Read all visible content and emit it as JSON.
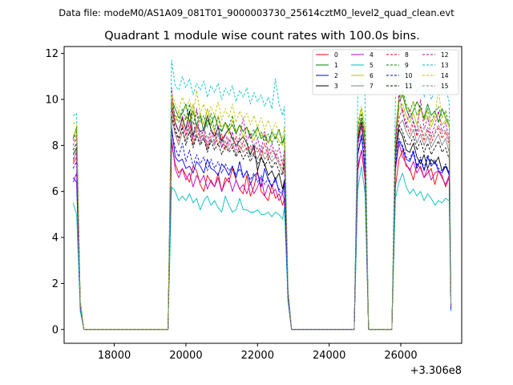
{
  "header": {
    "data_file": "Data file: modeM0/AS1A09_081T01_9000003730_25614cztM0_level2_quad_clean.evt"
  },
  "chart_data": {
    "type": "line",
    "title": "Quadrant 1 module wise count rates with 100.0s bins.",
    "xlabel": "",
    "ylabel": "",
    "x_offset_label": "+3.306e8",
    "xlim": [
      16600,
      27700
    ],
    "ylim": [
      -0.6,
      12.3
    ],
    "xticks": [
      18000,
      20000,
      22000,
      24000,
      26000
    ],
    "yticks": [
      0,
      2,
      4,
      6,
      8,
      10,
      12
    ],
    "legend_position": "top-right",
    "segments": [
      {
        "start": 16850,
        "end": 17050
      },
      {
        "start": 19500,
        "end": 22750
      },
      {
        "start": 24800,
        "end": 25000
      },
      {
        "start": 25850,
        "end": 27400
      }
    ],
    "x_samples": [
      16850,
      16950,
      17050,
      17150,
      18000,
      19400,
      19500,
      19600,
      19700,
      19800,
      19900,
      20000,
      20100,
      20200,
      20300,
      20400,
      20500,
      20600,
      20700,
      20800,
      20900,
      21000,
      21100,
      21200,
      21300,
      21400,
      21500,
      21600,
      21700,
      21800,
      21900,
      22000,
      22100,
      22200,
      22300,
      22400,
      22500,
      22600,
      22700,
      22750,
      22850,
      22950,
      23800,
      24700,
      24800,
      24900,
      25000,
      25100,
      25600,
      25750,
      25850,
      25950,
      26050,
      26150,
      26250,
      26350,
      26450,
      26550,
      26650,
      26750,
      26850,
      26950,
      27050,
      27150,
      27250,
      27350,
      27400
    ],
    "series": [
      {
        "name": "0",
        "color": "#ff0000",
        "dash": "solid",
        "values": [
          7.2,
          7.5,
          1.0,
          0.0,
          0.0,
          0.0,
          0.0,
          8.1,
          7.2,
          6.8,
          7.0,
          6.7,
          6.4,
          7.1,
          6.9,
          6.3,
          6.0,
          6.7,
          6.4,
          6.2,
          6.8,
          6.0,
          6.6,
          6.4,
          7.0,
          6.5,
          6.1,
          5.9,
          6.7,
          5.8,
          6.2,
          6.9,
          6.0,
          5.8,
          5.6,
          6.3,
          5.7,
          5.9,
          5.4,
          5.7,
          1.5,
          0.0,
          0.0,
          0.0,
          6.9,
          7.8,
          6.5,
          0.0,
          0.0,
          0.0,
          6.2,
          7.4,
          7.8,
          7.1,
          7.0,
          6.5,
          7.2,
          7.0,
          6.6,
          6.8,
          7.0,
          6.3,
          6.9,
          6.7,
          6.2,
          6.6,
          1.0
        ]
      },
      {
        "name": "1",
        "color": "#008000",
        "dash": "solid",
        "values": [
          8.3,
          8.8,
          1.2,
          0.0,
          0.0,
          0.0,
          0.0,
          10.0,
          9.6,
          9.2,
          9.4,
          9.8,
          9.0,
          9.5,
          8.9,
          9.3,
          8.6,
          9.1,
          8.9,
          9.3,
          8.8,
          8.6,
          9.0,
          8.7,
          8.9,
          8.5,
          8.9,
          8.6,
          8.8,
          8.3,
          8.5,
          8.8,
          8.3,
          8.4,
          8.1,
          8.6,
          8.3,
          8.7,
          8.1,
          8.4,
          1.6,
          0.0,
          0.0,
          0.0,
          8.6,
          9.2,
          8.3,
          0.0,
          0.0,
          0.0,
          8.1,
          9.9,
          10.2,
          9.6,
          9.2,
          9.5,
          9.9,
          9.6,
          9.2,
          9.8,
          9.3,
          9.5,
          9.0,
          9.6,
          9.2,
          8.9,
          1.1
        ]
      },
      {
        "name": "2",
        "color": "#0000ff",
        "dash": "solid",
        "values": [
          6.6,
          6.4,
          0.9,
          0.0,
          0.0,
          0.0,
          0.0,
          8.8,
          7.5,
          7.3,
          7.4,
          7.0,
          7.1,
          6.8,
          7.3,
          7.1,
          6.8,
          7.4,
          7.0,
          6.9,
          6.7,
          7.2,
          7.0,
          6.7,
          7.1,
          6.6,
          7.3,
          6.6,
          6.9,
          6.3,
          6.7,
          6.8,
          6.2,
          7.0,
          6.5,
          6.2,
          6.6,
          6.0,
          5.9,
          6.4,
          1.4,
          0.0,
          0.0,
          0.0,
          7.6,
          8.4,
          7.0,
          0.0,
          0.0,
          0.0,
          7.1,
          8.2,
          7.9,
          7.4,
          7.3,
          7.7,
          7.0,
          7.4,
          6.9,
          7.5,
          7.1,
          7.3,
          6.9,
          6.8,
          7.1,
          6.7,
          0.8
        ]
      },
      {
        "name": "3",
        "color": "#000000",
        "dash": "solid",
        "values": [
          7.6,
          7.9,
          1.1,
          0.0,
          0.0,
          0.0,
          0.0,
          9.6,
          9.0,
          8.6,
          9.2,
          8.7,
          9.5,
          8.4,
          8.9,
          8.6,
          8.7,
          9.3,
          8.7,
          8.4,
          8.8,
          8.2,
          8.5,
          8.7,
          8.3,
          8.0,
          8.2,
          8.4,
          8.1,
          7.6,
          8.0,
          6.9,
          7.5,
          7.2,
          6.7,
          6.9,
          6.5,
          6.8,
          6.1,
          6.5,
          1.4,
          0.0,
          0.0,
          0.0,
          8.2,
          9.0,
          7.7,
          0.0,
          0.0,
          0.0,
          7.5,
          8.7,
          8.4,
          7.8,
          7.7,
          8.1,
          7.5,
          7.2,
          7.6,
          7.0,
          7.4,
          7.2,
          7.5,
          6.9,
          7.1,
          6.8,
          1.0
        ]
      },
      {
        "name": "4",
        "color": "#bf00bf",
        "dash": "solid",
        "values": [
          6.4,
          6.8,
          1.0,
          0.0,
          0.0,
          0.0,
          0.0,
          8.3,
          7.0,
          6.6,
          7.0,
          6.5,
          6.8,
          6.2,
          6.7,
          6.4,
          6.7,
          6.1,
          6.5,
          6.2,
          6.6,
          6.0,
          6.4,
          6.6,
          6.0,
          6.5,
          6.1,
          6.3,
          5.9,
          6.4,
          5.9,
          6.2,
          6.6,
          5.8,
          6.3,
          5.9,
          6.1,
          5.6,
          5.9,
          5.6,
          1.3,
          0.0,
          0.0,
          0.0,
          7.1,
          7.8,
          6.8,
          0.0,
          0.0,
          0.0,
          6.9,
          8.1,
          7.5,
          7.2,
          6.9,
          7.3,
          6.8,
          7.1,
          6.6,
          7.0,
          6.5,
          6.8,
          6.9,
          6.6,
          6.3,
          6.7,
          0.9
        ]
      },
      {
        "name": "5",
        "color": "#00bfbf",
        "dash": "solid",
        "values": [
          5.5,
          5.0,
          0.8,
          0.0,
          0.0,
          0.0,
          0.0,
          6.2,
          6.0,
          5.6,
          5.8,
          5.6,
          5.9,
          5.5,
          5.7,
          5.2,
          5.6,
          5.8,
          5.4,
          5.6,
          5.3,
          5.1,
          5.8,
          5.4,
          5.1,
          5.2,
          5.7,
          5.2,
          5.2,
          5.1,
          5.1,
          5.2,
          5.0,
          5.0,
          5.1,
          4.9,
          5.1,
          5.0,
          4.8,
          5.3,
          1.2,
          0.0,
          0.0,
          0.0,
          6.1,
          7.1,
          5.9,
          0.0,
          0.0,
          0.0,
          5.7,
          6.4,
          6.8,
          6.2,
          5.9,
          6.1,
          5.8,
          6.0,
          5.6,
          5.9,
          5.7,
          5.4,
          5.6,
          5.5,
          5.7,
          5.6,
          0.8
        ]
      },
      {
        "name": "6",
        "color": "#bfbf00",
        "dash": "solid",
        "values": [
          8.4,
          8.7,
          1.2,
          0.0,
          0.0,
          0.0,
          0.0,
          10.1,
          9.0,
          9.5,
          8.8,
          9.3,
          9.0,
          9.8,
          8.7,
          9.4,
          8.9,
          9.6,
          9.0,
          8.6,
          9.3,
          8.8,
          9.0,
          8.5,
          9.1,
          8.6,
          8.9,
          8.3,
          8.8,
          8.5,
          8.2,
          8.7,
          8.4,
          8.6,
          8.1,
          8.4,
          8.5,
          8.2,
          8.0,
          8.3,
          1.7,
          0.0,
          0.0,
          0.0,
          8.9,
          9.6,
          8.5,
          0.0,
          0.0,
          0.0,
          8.3,
          9.6,
          9.8,
          9.3,
          9.0,
          9.4,
          8.9,
          9.6,
          9.1,
          9.3,
          8.8,
          9.2,
          9.4,
          8.9,
          9.1,
          8.8,
          1.0
        ]
      },
      {
        "name": "7",
        "color": "#808080",
        "dash": "solid",
        "values": [
          7.3,
          7.8,
          1.1,
          0.0,
          0.0,
          0.0,
          0.0,
          9.2,
          8.5,
          8.0,
          8.6,
          8.2,
          8.8,
          8.0,
          8.5,
          8.1,
          8.4,
          7.8,
          8.3,
          8.0,
          8.5,
          7.9,
          8.2,
          7.8,
          8.1,
          7.6,
          8.0,
          7.7,
          7.9,
          7.5,
          7.7,
          7.4,
          7.8,
          7.4,
          7.6,
          7.3,
          7.5,
          7.2,
          6.8,
          7.4,
          1.4,
          0.0,
          0.0,
          0.0,
          8.0,
          8.8,
          7.6,
          0.0,
          0.0,
          0.0,
          7.6,
          8.9,
          9.1,
          8.6,
          8.3,
          8.7,
          8.1,
          8.5,
          8.0,
          8.4,
          7.9,
          8.2,
          8.5,
          8.0,
          8.3,
          7.7,
          1.0
        ]
      },
      {
        "name": "8",
        "color": "#ff0000",
        "dash": "dashed",
        "values": [
          8.0,
          8.4,
          1.1,
          0.0,
          0.0,
          0.0,
          0.0,
          9.9,
          8.6,
          8.2,
          8.9,
          8.4,
          9.0,
          8.1,
          8.7,
          8.3,
          8.5,
          7.9,
          8.4,
          8.6,
          8.0,
          8.5,
          7.8,
          8.3,
          7.9,
          8.4,
          7.7,
          8.2,
          7.8,
          8.0,
          7.6,
          7.9,
          7.5,
          8.1,
          7.4,
          7.8,
          7.6,
          7.3,
          7.0,
          7.5,
          1.5,
          0.0,
          0.0,
          0.0,
          8.4,
          9.1,
          7.9,
          0.0,
          0.0,
          0.0,
          7.8,
          9.2,
          9.6,
          8.9,
          8.5,
          9.0,
          8.4,
          8.8,
          8.2,
          8.7,
          8.1,
          8.5,
          8.8,
          8.3,
          8.6,
          8.0,
          1.0
        ]
      },
      {
        "name": "9",
        "color": "#008000",
        "dash": "dashed",
        "values": [
          8.2,
          8.6,
          1.2,
          0.0,
          0.0,
          0.0,
          0.0,
          9.8,
          9.3,
          9.0,
          9.6,
          9.1,
          9.8,
          8.9,
          9.5,
          9.0,
          9.3,
          8.8,
          9.4,
          8.7,
          9.2,
          8.6,
          9.0,
          8.8,
          9.3,
          8.5,
          8.9,
          8.6,
          8.8,
          8.4,
          8.7,
          8.3,
          8.6,
          8.2,
          8.5,
          8.1,
          8.4,
          8.0,
          8.2,
          8.3,
          1.6,
          0.0,
          0.0,
          0.0,
          8.8,
          9.4,
          8.4,
          0.0,
          0.0,
          0.0,
          8.3,
          10.1,
          10.4,
          9.8,
          9.5,
          9.9,
          9.3,
          9.7,
          9.1,
          9.6,
          9.0,
          9.4,
          9.7,
          9.2,
          9.5,
          8.9,
          1.1
        ]
      },
      {
        "name": "10",
        "color": "#0000ff",
        "dash": "dashed",
        "values": [
          7.0,
          7.3,
          1.0,
          0.0,
          0.0,
          0.0,
          0.0,
          8.6,
          7.9,
          7.5,
          8.1,
          7.3,
          7.8,
          7.1,
          7.6,
          7.2,
          7.5,
          6.9,
          7.4,
          7.0,
          7.3,
          6.8,
          7.2,
          6.9,
          7.1,
          6.7,
          7.0,
          6.6,
          6.9,
          6.5,
          6.8,
          6.4,
          6.7,
          6.3,
          6.6,
          6.2,
          6.5,
          6.1,
          6.0,
          6.4,
          1.4,
          0.0,
          0.0,
          0.0,
          7.7,
          8.5,
          7.3,
          0.0,
          0.0,
          0.0,
          7.2,
          8.3,
          8.0,
          7.5,
          7.4,
          7.8,
          7.1,
          7.5,
          7.0,
          7.6,
          7.2,
          7.4,
          7.0,
          6.9,
          7.2,
          6.8,
          0.9
        ]
      },
      {
        "name": "11",
        "color": "#000000",
        "dash": "dashed",
        "values": [
          7.8,
          8.1,
          1.1,
          0.0,
          0.0,
          0.0,
          0.0,
          9.3,
          8.7,
          8.3,
          8.8,
          8.0,
          8.6,
          7.9,
          8.4,
          8.0,
          8.3,
          7.7,
          8.2,
          7.8,
          8.1,
          7.6,
          8.0,
          7.7,
          7.9,
          7.5,
          7.8,
          7.4,
          7.7,
          7.3,
          7.6,
          7.2,
          7.5,
          7.1,
          7.4,
          7.0,
          7.3,
          6.9,
          6.7,
          7.2,
          1.5,
          0.0,
          0.0,
          0.0,
          8.3,
          9.0,
          7.8,
          0.0,
          0.0,
          0.0,
          7.7,
          8.9,
          8.6,
          8.1,
          8.0,
          8.4,
          7.8,
          8.2,
          7.7,
          8.1,
          7.6,
          7.9,
          8.2,
          7.7,
          7.9,
          7.4,
          1.0
        ]
      },
      {
        "name": "12",
        "color": "#bf00bf",
        "dash": "dashed",
        "values": [
          7.4,
          7.7,
          1.0,
          0.0,
          0.0,
          0.0,
          0.0,
          10.5,
          9.0,
          8.6,
          9.3,
          8.5,
          9.1,
          8.3,
          9.6,
          8.2,
          8.8,
          8.0,
          8.7,
          8.1,
          8.9,
          7.9,
          8.5,
          8.0,
          8.6,
          7.8,
          8.4,
          9.2,
          8.2,
          8.5,
          7.8,
          8.3,
          7.7,
          8.6,
          7.6,
          8.1,
          7.5,
          7.9,
          7.2,
          7.8,
          1.5,
          0.0,
          0.0,
          0.0,
          8.1,
          8.9,
          7.7,
          0.0,
          0.0,
          0.0,
          7.9,
          10.3,
          9.4,
          8.8,
          9.6,
          9.0,
          8.5,
          10.0,
          8.7,
          9.2,
          8.4,
          8.9,
          9.5,
          8.6,
          9.0,
          8.3,
          1.0
        ]
      },
      {
        "name": "13",
        "color": "#00bfbf",
        "dash": "dashed",
        "values": [
          9.3,
          9.4,
          1.3,
          0.0,
          0.0,
          0.0,
          0.0,
          11.7,
          10.6,
          10.4,
          11.0,
          10.5,
          10.9,
          10.2,
          10.7,
          10.4,
          10.8,
          10.1,
          10.6,
          10.3,
          10.7,
          10.0,
          10.5,
          10.2,
          10.6,
          9.9,
          10.4,
          10.1,
          10.5,
          9.8,
          10.3,
          9.9,
          10.2,
          9.7,
          10.1,
          9.6,
          10.9,
          9.8,
          9.3,
          9.7,
          1.9,
          0.0,
          0.0,
          0.0,
          10.4,
          10.8,
          10.2,
          0.0,
          0.0,
          0.0,
          10.0,
          11.5,
          11.2,
          10.8,
          10.4,
          10.9,
          10.3,
          10.7,
          10.1,
          10.6,
          10.0,
          10.4,
          10.8,
          10.2,
          10.5,
          9.9,
          1.2
        ]
      },
      {
        "name": "14",
        "color": "#bfbf00",
        "dash": "dashed",
        "values": [
          9.0,
          8.9,
          1.2,
          0.0,
          0.0,
          0.0,
          0.0,
          10.3,
          9.8,
          9.5,
          10.1,
          9.6,
          10.0,
          9.3,
          10.4,
          9.4,
          9.8,
          9.2,
          9.7,
          9.3,
          9.9,
          9.1,
          9.6,
          9.2,
          9.8,
          9.0,
          9.5,
          9.1,
          9.4,
          8.9,
          9.3,
          8.8,
          9.2,
          8.7,
          9.1,
          8.6,
          9.0,
          8.5,
          8.3,
          8.8,
          1.7,
          0.0,
          0.0,
          0.0,
          9.0,
          9.7,
          8.8,
          0.0,
          0.0,
          0.0,
          8.7,
          10.0,
          10.3,
          9.7,
          9.4,
          9.9,
          9.3,
          9.6,
          9.1,
          9.5,
          9.0,
          9.3,
          10.4,
          9.2,
          9.4,
          8.9,
          1.1
        ]
      },
      {
        "name": "15",
        "color": "#808080",
        "dash": "dashed",
        "values": [
          8.0,
          8.3,
          1.1,
          0.0,
          0.0,
          0.0,
          0.0,
          9.5,
          8.9,
          8.6,
          9.1,
          8.7,
          9.0,
          8.5,
          8.9,
          8.4,
          8.8,
          8.3,
          8.7,
          8.2,
          8.6,
          8.1,
          8.5,
          8.2,
          8.4,
          8.0,
          8.3,
          7.9,
          8.2,
          7.8,
          8.1,
          7.7,
          8.0,
          7.6,
          7.9,
          7.5,
          7.8,
          7.4,
          7.3,
          7.6,
          1.5,
          0.0,
          0.0,
          0.0,
          8.5,
          9.2,
          8.1,
          0.0,
          0.0,
          0.0,
          8.0,
          9.3,
          9.5,
          9.0,
          8.7,
          9.1,
          8.6,
          8.9,
          8.4,
          8.8,
          8.3,
          8.6,
          8.9,
          8.5,
          8.7,
          8.2,
          1.0
        ]
      }
    ]
  }
}
